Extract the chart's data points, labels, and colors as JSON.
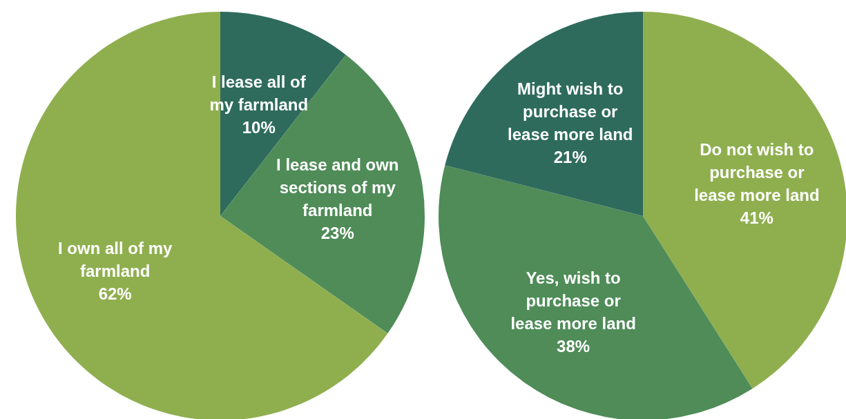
{
  "chart_data": [
    {
      "type": "pie",
      "categories": [
        "I lease all of my farmland",
        "I lease and own sections of my farmland",
        "I own all of my farmland"
      ],
      "values": [
        10,
        23,
        62
      ],
      "value_labels": [
        "10%",
        "23%",
        "62%"
      ],
      "colors": [
        "#2e6b5c",
        "#4f8c58",
        "#8faf4f"
      ]
    },
    {
      "type": "pie",
      "categories": [
        "Do not wish to purchase or lease more land",
        "Yes, wish to purchase or lease more land",
        "Might wish to purchase or lease more land"
      ],
      "values": [
        41,
        38,
        21
      ],
      "value_labels": [
        "41%",
        "38%",
        "21%"
      ],
      "colors": [
        "#8faf4f",
        "#4f8c58",
        "#2e6b5c"
      ]
    }
  ]
}
